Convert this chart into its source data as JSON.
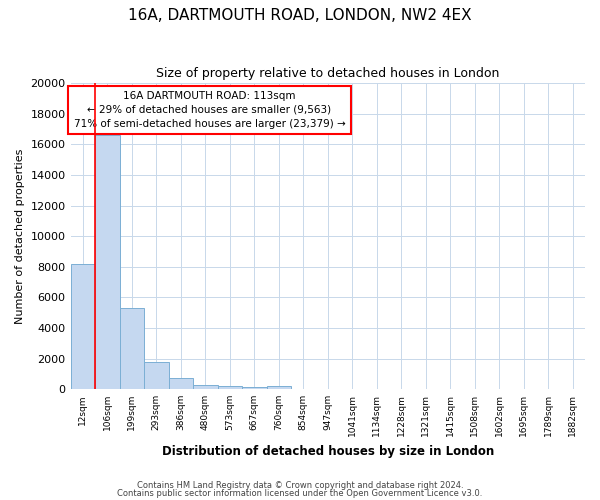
{
  "title1": "16A, DARTMOUTH ROAD, LONDON, NW2 4EX",
  "title2": "Size of property relative to detached houses in London",
  "xlabel": "Distribution of detached houses by size in London",
  "ylabel": "Number of detached properties",
  "annotation_line1": "16A DARTMOUTH ROAD: 113sqm",
  "annotation_line2": "← 29% of detached houses are smaller (9,563)",
  "annotation_line3": "71% of semi-detached houses are larger (23,379) →",
  "categories": [
    "12sqm",
    "106sqm",
    "199sqm",
    "293sqm",
    "386sqm",
    "480sqm",
    "573sqm",
    "667sqm",
    "760sqm",
    "854sqm",
    "947sqm",
    "1041sqm",
    "1134sqm",
    "1228sqm",
    "1321sqm",
    "1415sqm",
    "1508sqm",
    "1602sqm",
    "1695sqm",
    "1789sqm",
    "1882sqm"
  ],
  "values": [
    8200,
    16600,
    5300,
    1800,
    750,
    300,
    200,
    150,
    200,
    0,
    0,
    0,
    0,
    0,
    0,
    0,
    0,
    0,
    0,
    0,
    0
  ],
  "bar_color": "#c5d8f0",
  "bar_edge_color": "#7bafd4",
  "red_line_index": 1,
  "background_color": "#ffffff",
  "grid_color": "#c8d8ea",
  "ylim_max": 20000,
  "ytick_step": 2000,
  "footnote1": "Contains HM Land Registry data © Crown copyright and database right 2024.",
  "footnote2": "Contains public sector information licensed under the Open Government Licence v3.0."
}
